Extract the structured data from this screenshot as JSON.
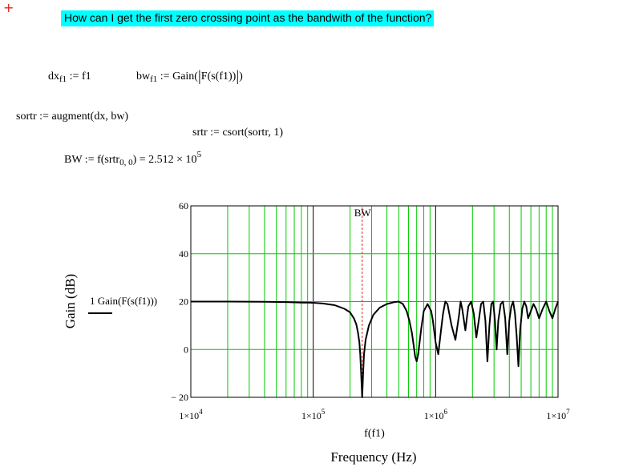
{
  "cursor_icon": "red-crosshair-icon",
  "question": "How can I get the first zero crossing point as the bandwith of the function?",
  "equations": {
    "dx_lhs": "dx",
    "dx_sub": "f1",
    "dx_rhs": ":= f1",
    "bw_lhs": "bw",
    "bw_sub": "f1",
    "bw_rhs_a": ":= Gain(",
    "bw_rhs_b": "F(s(f1))",
    "bw_rhs_c": ")",
    "sortr": "sortr := augment(dx, bw)",
    "srtr": "srtr := csort(sortr, 1)",
    "bw_def_a": "BW := f(",
    "bw_def_b": "srtr",
    "bw_def_sub": "0, 0",
    "bw_def_c": ")",
    "bw_def_eq": "= 2.512 × 10",
    "bw_def_exp": "5"
  },
  "plot": {
    "ylabel": "Gain (dB)",
    "xlabel_expr": "f(f1)",
    "xlabel_title": "Frequency (Hz)",
    "trace_label": "1 Gain(F(s(f1)))",
    "marker_label": "BW",
    "colors": {
      "grid": "#00cc00",
      "trace": "#000000",
      "marker": "#e0251b"
    }
  },
  "chart_data": {
    "type": "line",
    "xscale": "log",
    "xlim": [
      10000,
      10000000
    ],
    "ylim": [
      -20,
      60
    ],
    "yticks": [
      "60",
      "40",
      "20",
      "0",
      "− 20"
    ],
    "xticks": [
      {
        "base": "1×10",
        "exp": "4"
      },
      {
        "base": "1×10",
        "exp": "5"
      },
      {
        "base": "1×10",
        "exp": "6"
      },
      {
        "base": "1×10",
        "exp": "7"
      }
    ],
    "marker_x": 251200,
    "series": [
      {
        "x": [
          10000,
          20000,
          40000,
          60000,
          80000,
          100000,
          120000,
          150000,
          180000,
          200000,
          215000,
          225000,
          232000,
          238000,
          242000,
          246000,
          249000,
          251200,
          253000,
          256000,
          260000,
          268000,
          285000,
          310000,
          350000,
          400000,
          460000,
          500000,
          540000,
          580000,
          610000,
          640000,
          660000,
          680000,
          700000,
          720000,
          760000,
          800000,
          860000,
          920000,
          950000,
          1000000,
          1050000,
          1100000,
          1150000,
          1200000,
          1250000,
          1350000,
          1450000,
          1550000,
          1600000,
          1650000,
          1750000,
          1850000,
          1950000,
          2050000,
          2150000,
          2250000,
          2350000,
          2450000,
          2550000,
          2650000,
          2750000,
          2850000,
          2950000,
          3050000,
          3150000,
          3250000,
          3400000,
          3550000,
          3700000,
          3850000,
          4000000,
          4150000,
          4300000,
          4450000,
          4600000,
          4750000,
          4900000,
          5100000,
          5300000,
          5500000,
          5700000,
          6000000,
          6300000,
          6600000,
          7000000,
          7500000,
          8000000,
          8500000,
          9000000,
          9500000,
          10000000
        ],
        "y": [
          20,
          20,
          19.9,
          19.8,
          19.6,
          19.5,
          19.2,
          18.5,
          17,
          15.5,
          13,
          10.5,
          7,
          3,
          -2,
          -9,
          -16,
          -20,
          -16,
          -9,
          -2,
          4,
          10,
          14.5,
          17.5,
          19,
          19.8,
          20,
          19,
          16,
          12,
          7,
          2,
          -3,
          -5,
          -2,
          8,
          16,
          19,
          16,
          12,
          3,
          -2,
          7,
          15,
          20,
          19,
          10,
          4,
          14,
          20,
          17,
          8,
          18,
          20,
          15,
          5,
          12,
          19,
          20,
          12,
          -5,
          10,
          19,
          20,
          12,
          0,
          12,
          19,
          20,
          13,
          -2,
          12,
          18,
          20,
          15,
          5,
          -7,
          8,
          17,
          20,
          18,
          13,
          16,
          19,
          17,
          13,
          17,
          20,
          16,
          13,
          17,
          20
        ]
      }
    ]
  }
}
